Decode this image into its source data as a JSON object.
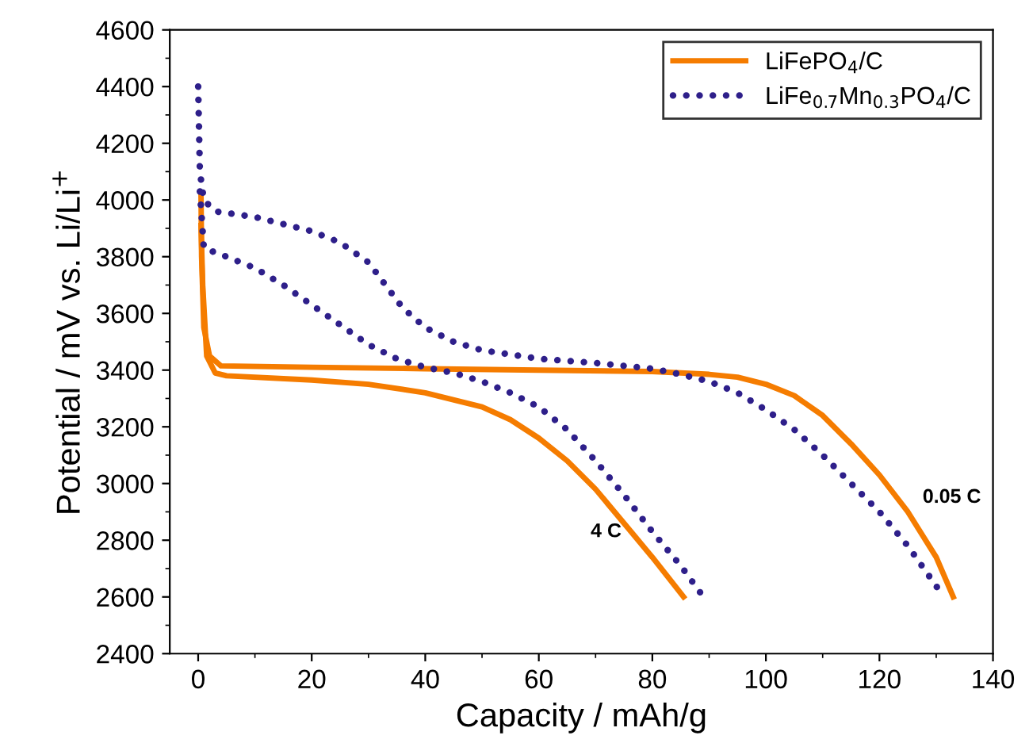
{
  "chart_data": {
    "type": "line",
    "xlabel": "Capacity / mAh/g",
    "ylabel": "Potential / mV vs. Li/Li$^{+}$",
    "xlim": [
      -5,
      140
    ],
    "ylim": [
      2400,
      4600
    ],
    "xticks": [
      0,
      20,
      40,
      60,
      80,
      100,
      120,
      140
    ],
    "yticks": [
      2400,
      2600,
      2800,
      3000,
      3200,
      3400,
      3600,
      3800,
      4000,
      4200,
      4400,
      4600
    ],
    "grid": false,
    "legend": "top right",
    "marker": "none",
    "series": [
      {
        "name": "LiFePO$_{4}$/C",
        "color": "#f57c00",
        "line_style": "solid",
        "x": [
          0.5,
          0.6,
          1,
          2,
          4,
          20,
          40,
          60,
          80,
          90,
          95,
          100,
          105,
          110,
          115,
          120,
          125,
          130,
          133
        ],
        "values": [
          4020,
          3800,
          3550,
          3450,
          3415,
          3410,
          3405,
          3400,
          3395,
          3385,
          3375,
          3350,
          3310,
          3240,
          3140,
          3030,
          2900,
          2740,
          2600
        ]
      },
      {
        "color": "#f57c00",
        "line_style": "solid",
        "x": [
          0.5,
          0.8,
          1.5,
          3,
          5,
          20,
          30,
          40,
          50,
          55,
          60,
          65,
          70,
          75,
          80,
          85.5
        ],
        "values": [
          3910,
          3700,
          3450,
          3390,
          3380,
          3365,
          3350,
          3320,
          3270,
          3225,
          3160,
          3080,
          2980,
          2860,
          2740,
          2600
        ]
      },
      {
        "name": "LiFe$_{0.7}$Mn$_{0.3}$PO$_{4}$/C",
        "color": "#2e1f8a",
        "line_style": "dotted",
        "x": [
          0,
          0.3,
          1,
          3,
          10,
          20,
          25,
          30,
          33,
          36,
          40,
          45,
          50,
          60,
          70,
          80,
          85,
          90,
          95,
          100,
          105,
          110,
          115,
          120,
          125,
          131
        ],
        "values": [
          4400,
          4100,
          4000,
          3960,
          3940,
          3890,
          3850,
          3780,
          3700,
          3620,
          3550,
          3500,
          3470,
          3440,
          3425,
          3405,
          3385,
          3360,
          3320,
          3260,
          3190,
          3100,
          3000,
          2900,
          2780,
          2610
        ]
      },
      {
        "color": "#2e1f8a",
        "line_style": "dotted",
        "x": [
          0.3,
          1,
          5,
          10,
          15,
          20,
          25,
          30,
          35,
          40,
          45,
          50,
          55,
          60,
          65,
          70,
          75,
          80,
          85,
          89
        ],
        "values": [
          4030,
          3830,
          3800,
          3760,
          3700,
          3630,
          3560,
          3490,
          3440,
          3410,
          3390,
          3360,
          3320,
          3270,
          3190,
          3080,
          2960,
          2830,
          2710,
          2600
        ]
      }
    ],
    "annotations": [
      "0.05 C",
      "4 C"
    ]
  }
}
